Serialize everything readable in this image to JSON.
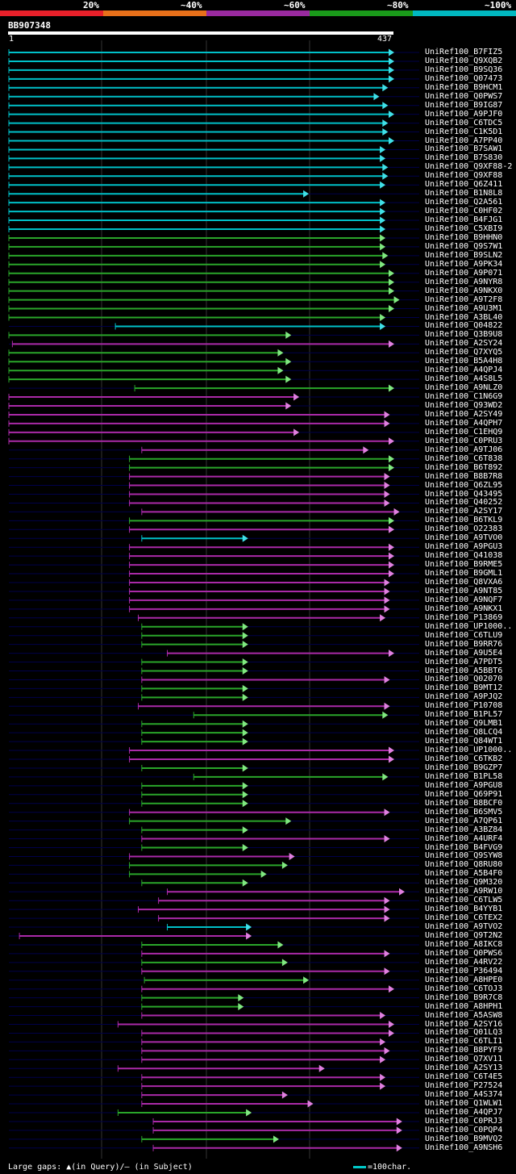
{
  "legend": [
    {
      "label": "20%",
      "color": "#e8202a"
    },
    {
      "label": "~40%",
      "color": "#e8701a"
    },
    {
      "label": "~60%",
      "color": "#9a2aa0"
    },
    {
      "label": "~80%",
      "color": "#1a9a1a"
    },
    {
      "label": "~100%",
      "color": "#00b8c0"
    }
  ],
  "query": {
    "id": "BB907348",
    "start": "1",
    "end": "437"
  },
  "colors": {
    "cyan": "#00c0c8",
    "green": "#2aa62a",
    "magenta": "#aa2aa8",
    "arrow_cyan": "#40e0e8",
    "arrow_green": "#80e880",
    "arrow_magenta": "#e080e0"
  },
  "hits": [
    {
      "name": "UniRef100_B7FIZ5",
      "s": 1,
      "e": 437,
      "c": "cyan"
    },
    {
      "name": "UniRef100_Q9XQB2",
      "s": 1,
      "e": 437,
      "c": "cyan"
    },
    {
      "name": "UniRef100_B9SQ36",
      "s": 1,
      "e": 437,
      "c": "cyan"
    },
    {
      "name": "UniRef100_Q07473",
      "s": 1,
      "e": 437,
      "c": "cyan"
    },
    {
      "name": "UniRef100_B9HCM1",
      "s": 1,
      "e": 430,
      "c": "cyan"
    },
    {
      "name": "UniRef100_Q0PWS7",
      "s": 1,
      "e": 420,
      "c": "cyan"
    },
    {
      "name": "UniRef100_B9IG87",
      "s": 1,
      "e": 430,
      "c": "cyan"
    },
    {
      "name": "UniRef100_A9PJF0",
      "s": 1,
      "e": 437,
      "c": "cyan"
    },
    {
      "name": "UniRef100_C6TDC5",
      "s": 1,
      "e": 430,
      "c": "cyan"
    },
    {
      "name": "UniRef100_C1K5D1",
      "s": 1,
      "e": 430,
      "c": "cyan"
    },
    {
      "name": "UniRef100_A7PP40",
      "s": 1,
      "e": 437,
      "c": "cyan"
    },
    {
      "name": "UniRef100_B7SAW1",
      "s": 1,
      "e": 427,
      "c": "cyan"
    },
    {
      "name": "UniRef100_B7S830",
      "s": 1,
      "e": 427,
      "c": "cyan"
    },
    {
      "name": "UniRef100_Q9XF88-2",
      "s": 1,
      "e": 430,
      "c": "cyan"
    },
    {
      "name": "UniRef100_Q9XF88",
      "s": 1,
      "e": 430,
      "c": "cyan"
    },
    {
      "name": "UniRef100_Q6Z411",
      "s": 1,
      "e": 427,
      "c": "cyan"
    },
    {
      "name": "UniRef100_B1N8L8",
      "s": 1,
      "e": 340,
      "c": "cyan"
    },
    {
      "name": "UniRef100_Q2A561",
      "s": 1,
      "e": 427,
      "c": "cyan"
    },
    {
      "name": "UniRef100_C0HF02",
      "s": 1,
      "e": 427,
      "c": "cyan"
    },
    {
      "name": "UniRef100_B4FJG1",
      "s": 1,
      "e": 427,
      "c": "cyan"
    },
    {
      "name": "UniRef100_C5XBI9",
      "s": 1,
      "e": 427,
      "c": "cyan"
    },
    {
      "name": "UniRef100_B9HHN0",
      "s": 1,
      "e": 427,
      "c": "green"
    },
    {
      "name": "UniRef100_Q9S7W1",
      "s": 1,
      "e": 427,
      "c": "green"
    },
    {
      "name": "UniRef100_B9SLN2",
      "s": 1,
      "e": 430,
      "c": "green"
    },
    {
      "name": "UniRef100_A9PK34",
      "s": 1,
      "e": 427,
      "c": "green"
    },
    {
      "name": "UniRef100_A9P071",
      "s": 1,
      "e": 437,
      "c": "green"
    },
    {
      "name": "UniRef100_A9NYR8",
      "s": 1,
      "e": 437,
      "c": "green"
    },
    {
      "name": "UniRef100_A9NKX0",
      "s": 1,
      "e": 437,
      "c": "green"
    },
    {
      "name": "UniRef100_A9T2F8",
      "s": 1,
      "e": 443,
      "c": "green"
    },
    {
      "name": "UniRef100_A9U3M1",
      "s": 1,
      "e": 437,
      "c": "green"
    },
    {
      "name": "UniRef100_A3BL40",
      "s": 1,
      "e": 427,
      "c": "green"
    },
    {
      "name": "UniRef100_Q04822",
      "s": 122,
      "e": 427,
      "c": "cyan"
    },
    {
      "name": "UniRef100_Q3B9U8",
      "s": 1,
      "e": 320,
      "c": "green"
    },
    {
      "name": "UniRef100_A2SY24",
      "s": 5,
      "e": 437,
      "c": "magenta"
    },
    {
      "name": "UniRef100_Q7XYQ5",
      "s": 1,
      "e": 311,
      "c": "green"
    },
    {
      "name": "UniRef100_B5A4H8",
      "s": 1,
      "e": 320,
      "c": "green"
    },
    {
      "name": "UniRef100_A4QPJ4",
      "s": 1,
      "e": 311,
      "c": "green"
    },
    {
      "name": "UniRef100_A4S8L5",
      "s": 1,
      "e": 320,
      "c": "green"
    },
    {
      "name": "UniRef100_A9NLZ0",
      "s": 144,
      "e": 437,
      "c": "green"
    },
    {
      "name": "UniRef100_C1N6G9",
      "s": 1,
      "e": 329,
      "c": "magenta"
    },
    {
      "name": "UniRef100_Q93WD2",
      "s": 1,
      "e": 320,
      "c": "magenta"
    },
    {
      "name": "UniRef100_A2SY49",
      "s": 1,
      "e": 432,
      "c": "magenta"
    },
    {
      "name": "UniRef100_A4QPH7",
      "s": 1,
      "e": 432,
      "c": "magenta"
    },
    {
      "name": "UniRef100_C1EHQ9",
      "s": 1,
      "e": 329,
      "c": "magenta"
    },
    {
      "name": "UniRef100_C0PRU3",
      "s": 1,
      "e": 437,
      "c": "magenta"
    },
    {
      "name": "UniRef100_A9TJ06",
      "s": 152,
      "e": 408,
      "c": "magenta"
    },
    {
      "name": "UniRef100_C6T838",
      "s": 138,
      "e": 437,
      "c": "green"
    },
    {
      "name": "UniRef100_B6T892",
      "s": 138,
      "e": 437,
      "c": "green"
    },
    {
      "name": "UniRef100_B8B7R8",
      "s": 138,
      "e": 432,
      "c": "magenta"
    },
    {
      "name": "UniRef100_Q6ZL95",
      "s": 138,
      "e": 432,
      "c": "magenta"
    },
    {
      "name": "UniRef100_Q43495",
      "s": 138,
      "e": 432,
      "c": "magenta"
    },
    {
      "name": "UniRef100_Q40252",
      "s": 138,
      "e": 432,
      "c": "magenta"
    },
    {
      "name": "UniRef100_A2SY17",
      "s": 152,
      "e": 443,
      "c": "magenta"
    },
    {
      "name": "UniRef100_B6TKL9",
      "s": 138,
      "e": 437,
      "c": "green"
    },
    {
      "name": "UniRef100_O22383",
      "s": 138,
      "e": 437,
      "c": "magenta"
    },
    {
      "name": "UniRef100_A9TVO0",
      "s": 152,
      "e": 271,
      "c": "cyan"
    },
    {
      "name": "UniRef100_A9PGU3",
      "s": 138,
      "e": 437,
      "c": "magenta"
    },
    {
      "name": "UniRef100_Q41038",
      "s": 138,
      "e": 437,
      "c": "magenta"
    },
    {
      "name": "UniRef100_B9RME5",
      "s": 138,
      "e": 437,
      "c": "magenta"
    },
    {
      "name": "UniRef100_B9GML1",
      "s": 138,
      "e": 437,
      "c": "magenta"
    },
    {
      "name": "UniRef100_Q8VXA6",
      "s": 138,
      "e": 432,
      "c": "magenta"
    },
    {
      "name": "UniRef100_A9NT85",
      "s": 138,
      "e": 432,
      "c": "magenta"
    },
    {
      "name": "UniRef100_A9NQF7",
      "s": 138,
      "e": 432,
      "c": "magenta"
    },
    {
      "name": "UniRef100_A9NKX1",
      "s": 138,
      "e": 432,
      "c": "magenta"
    },
    {
      "name": "UniRef100_P13869",
      "s": 148,
      "e": 427,
      "c": "magenta"
    },
    {
      "name": "UniRef100_UP1000..",
      "s": 152,
      "e": 271,
      "c": "green"
    },
    {
      "name": "UniRef100_C6TLU9",
      "s": 152,
      "e": 271,
      "c": "green"
    },
    {
      "name": "UniRef100_B9RR76",
      "s": 152,
      "e": 271,
      "c": "green"
    },
    {
      "name": "UniRef100_A9U5E4",
      "s": 181,
      "e": 437,
      "c": "magenta"
    },
    {
      "name": "UniRef100_A7PDT5",
      "s": 152,
      "e": 271,
      "c": "green"
    },
    {
      "name": "UniRef100_A5BBT6",
      "s": 152,
      "e": 271,
      "c": "green"
    },
    {
      "name": "UniRef100_Q02070",
      "s": 152,
      "e": 432,
      "c": "magenta"
    },
    {
      "name": "UniRef100_B9MT12",
      "s": 152,
      "e": 271,
      "c": "green"
    },
    {
      "name": "UniRef100_A9PJQ2",
      "s": 152,
      "e": 271,
      "c": "green"
    },
    {
      "name": "UniRef100_P10708",
      "s": 148,
      "e": 432,
      "c": "magenta"
    },
    {
      "name": "UniRef100_B1PL57",
      "s": 211,
      "e": 430,
      "c": "green"
    },
    {
      "name": "UniRef100_Q9LMB1",
      "s": 152,
      "e": 271,
      "c": "green"
    },
    {
      "name": "UniRef100_Q8LCQ4",
      "s": 152,
      "e": 271,
      "c": "green"
    },
    {
      "name": "UniRef100_Q84WT1",
      "s": 152,
      "e": 271,
      "c": "green"
    },
    {
      "name": "UniRef100_UP1000..",
      "s": 138,
      "e": 437,
      "c": "magenta"
    },
    {
      "name": "UniRef100_C6TKB2",
      "s": 138,
      "e": 437,
      "c": "magenta"
    },
    {
      "name": "UniRef100_B9GZP7",
      "s": 152,
      "e": 271,
      "c": "green"
    },
    {
      "name": "UniRef100_B1PL58",
      "s": 211,
      "e": 430,
      "c": "green"
    },
    {
      "name": "UniRef100_A9PGU8",
      "s": 152,
      "e": 271,
      "c": "green"
    },
    {
      "name": "UniRef100_Q69P91",
      "s": 152,
      "e": 271,
      "c": "green"
    },
    {
      "name": "UniRef100_B8BCF0",
      "s": 152,
      "e": 271,
      "c": "green"
    },
    {
      "name": "UniRef100_B6SMV5",
      "s": 138,
      "e": 432,
      "c": "magenta"
    },
    {
      "name": "UniRef100_A7QP61",
      "s": 138,
      "e": 320,
      "c": "green"
    },
    {
      "name": "UniRef100_A3BZ84",
      "s": 152,
      "e": 271,
      "c": "green"
    },
    {
      "name": "UniRef100_A4URF4",
      "s": 152,
      "e": 432,
      "c": "magenta"
    },
    {
      "name": "UniRef100_B4FVG9",
      "s": 152,
      "e": 271,
      "c": "green"
    },
    {
      "name": "UniRef100_Q9SYW8",
      "s": 138,
      "e": 324,
      "c": "magenta"
    },
    {
      "name": "UniRef100_Q8RU80",
      "s": 138,
      "e": 316,
      "c": "green"
    },
    {
      "name": "UniRef100_A5B4F0",
      "s": 138,
      "e": 292,
      "c": "green"
    },
    {
      "name": "UniRef100_Q9M320",
      "s": 152,
      "e": 271,
      "c": "green"
    },
    {
      "name": "UniRef100_A9RW10",
      "s": 181,
      "e": 451,
      "c": "magenta"
    },
    {
      "name": "UniRef100_C6TLW5",
      "s": 171,
      "e": 432,
      "c": "magenta"
    },
    {
      "name": "UniRef100_B4YYB1",
      "s": 148,
      "e": 432,
      "c": "magenta"
    },
    {
      "name": "UniRef100_C6TEX2",
      "s": 171,
      "e": 432,
      "c": "magenta"
    },
    {
      "name": "UniRef100_A9TVO2",
      "s": 181,
      "e": 275,
      "c": "cyan"
    },
    {
      "name": "UniRef100_Q9T2N2",
      "s": 13,
      "e": 275,
      "c": "magenta"
    },
    {
      "name": "UniRef100_A8IKC8",
      "s": 152,
      "e": 311,
      "c": "green"
    },
    {
      "name": "UniRef100_Q0PWS6",
      "s": 152,
      "e": 432,
      "c": "magenta"
    },
    {
      "name": "UniRef100_A4RV22",
      "s": 152,
      "e": 316,
      "c": "green"
    },
    {
      "name": "UniRef100_P36494",
      "s": 152,
      "e": 432,
      "c": "magenta"
    },
    {
      "name": "UniRef100_A8HPE0",
      "s": 155,
      "e": 340,
      "c": "green"
    },
    {
      "name": "UniRef100_C6TOJ3",
      "s": 152,
      "e": 437,
      "c": "magenta"
    },
    {
      "name": "UniRef100_B9R7C8",
      "s": 152,
      "e": 266,
      "c": "green"
    },
    {
      "name": "UniRef100_A8HPH1",
      "s": 152,
      "e": 266,
      "c": "green"
    },
    {
      "name": "UniRef100_A5ASW8",
      "s": 152,
      "e": 427,
      "c": "magenta"
    },
    {
      "name": "UniRef100_A2SY16",
      "s": 125,
      "e": 437,
      "c": "magenta"
    },
    {
      "name": "UniRef100_Q01LQ3",
      "s": 152,
      "e": 437,
      "c": "magenta"
    },
    {
      "name": "UniRef100_C6TLI1",
      "s": 152,
      "e": 427,
      "c": "magenta"
    },
    {
      "name": "UniRef100_B8PYF9",
      "s": 152,
      "e": 432,
      "c": "magenta"
    },
    {
      "name": "UniRef100_Q7XV11",
      "s": 152,
      "e": 427,
      "c": "magenta"
    },
    {
      "name": "UniRef100_A2SY13",
      "s": 125,
      "e": 358,
      "c": "magenta"
    },
    {
      "name": "UniRef100_C6T4E5",
      "s": 152,
      "e": 427,
      "c": "magenta"
    },
    {
      "name": "UniRef100_P27524",
      "s": 152,
      "e": 427,
      "c": "magenta"
    },
    {
      "name": "UniRef100_A4S374",
      "s": 152,
      "e": 316,
      "c": "magenta"
    },
    {
      "name": "UniRef100_Q1WLW1",
      "s": 152,
      "e": 345,
      "c": "magenta"
    },
    {
      "name": "UniRef100_A4QPJ7",
      "s": 125,
      "e": 275,
      "c": "green"
    },
    {
      "name": "UniRef100_C0PRJ3",
      "s": 165,
      "e": 446,
      "c": "magenta"
    },
    {
      "name": "UniRef100_C0PQP4",
      "s": 165,
      "e": 446,
      "c": "magenta"
    },
    {
      "name": "UniRef100_B9MVQ2",
      "s": 152,
      "e": 306,
      "c": "green"
    },
    {
      "name": "UniRef100_A9NSH6",
      "s": 165,
      "e": 446,
      "c": "magenta"
    }
  ],
  "footer": {
    "text": "Large gaps: ▲(in Query)/– (in Subject)",
    "key": "=100char."
  }
}
